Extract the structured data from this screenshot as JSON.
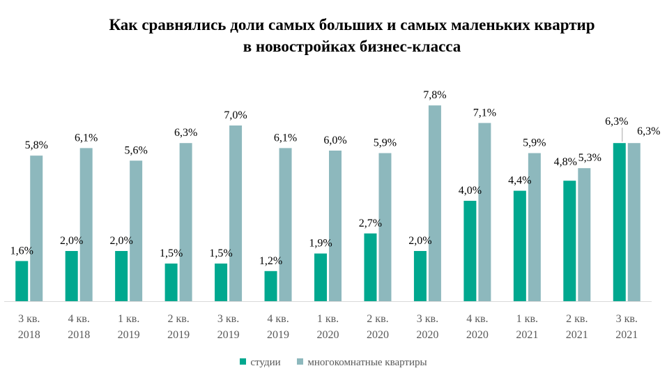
{
  "chart_data": {
    "type": "bar",
    "title_lines": [
      "Как сравнялись доли самых больших и самых маленьких квартир",
      "в новостройках  бизнес-класса"
    ],
    "categories": [
      [
        "3 кв.",
        "2018"
      ],
      [
        "4 кв.",
        "2018"
      ],
      [
        "1 кв.",
        "2019"
      ],
      [
        "2 кв.",
        "2019"
      ],
      [
        "3 кв.",
        "2019"
      ],
      [
        "4 кв.",
        "2019"
      ],
      [
        "1 кв.",
        "2020"
      ],
      [
        "2 кв.",
        "2020"
      ],
      [
        "3 кв.",
        "2020"
      ],
      [
        "4 кв.",
        "2020"
      ],
      [
        "1 кв.",
        "2021"
      ],
      [
        "2 кв.",
        "2021"
      ],
      [
        "3 кв.",
        "2021"
      ]
    ],
    "series": [
      {
        "name": "студии",
        "color": "#00A88F",
        "values": [
          1.6,
          2.0,
          2.0,
          1.5,
          1.5,
          1.2,
          1.9,
          2.7,
          2.0,
          4.0,
          4.4,
          4.8,
          6.3
        ],
        "labels": [
          "1,6%",
          "2,0%",
          "2,0%",
          "1,5%",
          "1,5%",
          "1,2%",
          "1,9%",
          "2,7%",
          "2,0%",
          "4,0%",
          "4,4%",
          "4,8%",
          "6,3%"
        ]
      },
      {
        "name": "многокомнатные квартиры",
        "color": "#8DB8BD",
        "values": [
          5.8,
          6.1,
          5.6,
          6.3,
          7.0,
          6.1,
          6.0,
          5.9,
          7.8,
          7.1,
          5.9,
          5.3,
          6.3
        ],
        "labels": [
          "5,8%",
          "6,1%",
          "5,6%",
          "6,3%",
          "7,0%",
          "6,1%",
          "6,0%",
          "5,9%",
          "7,8%",
          "7,1%",
          "5,9%",
          "5,3%",
          "6,3%"
        ]
      }
    ],
    "ylim": [
      0,
      8.5
    ],
    "grid": false,
    "legend_position": "bottom",
    "axis_color": "#D9D9D9",
    "label_color": "#000000",
    "tick_color": "#595959"
  }
}
